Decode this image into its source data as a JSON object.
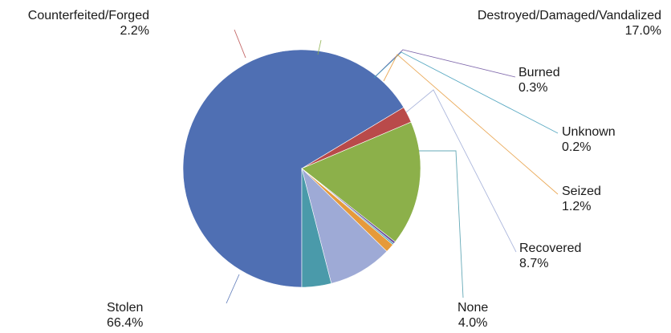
{
  "chart_data": {
    "type": "pie",
    "title": "",
    "slices": [
      {
        "label": "Stolen",
        "value": 66.4,
        "display": "66.4%",
        "color": "#4f6fb3"
      },
      {
        "label": "Counterfeited/Forged",
        "value": 2.2,
        "display": "2.2%",
        "color": "#b94a4a"
      },
      {
        "label": "Destroyed/Damaged/Vandalized",
        "value": 17.0,
        "display": "17.0%",
        "color": "#8cb04a"
      },
      {
        "label": "Burned",
        "value": 0.3,
        "display": "0.3%",
        "color": "#6a4f9e"
      },
      {
        "label": "Unknown",
        "value": 0.2,
        "display": "0.2%",
        "color": "#3e9bb8"
      },
      {
        "label": "Seized",
        "value": 1.2,
        "display": "1.2%",
        "color": "#e69a3b"
      },
      {
        "label": "Recovered",
        "value": 8.7,
        "display": "8.7%",
        "color": "#9eaad6"
      },
      {
        "label": "None",
        "value": 4.0,
        "display": "4.0%",
        "color": "#4a9aaa"
      }
    ],
    "legend": "none",
    "label_lines": "leader lines from slices to outside labels"
  }
}
